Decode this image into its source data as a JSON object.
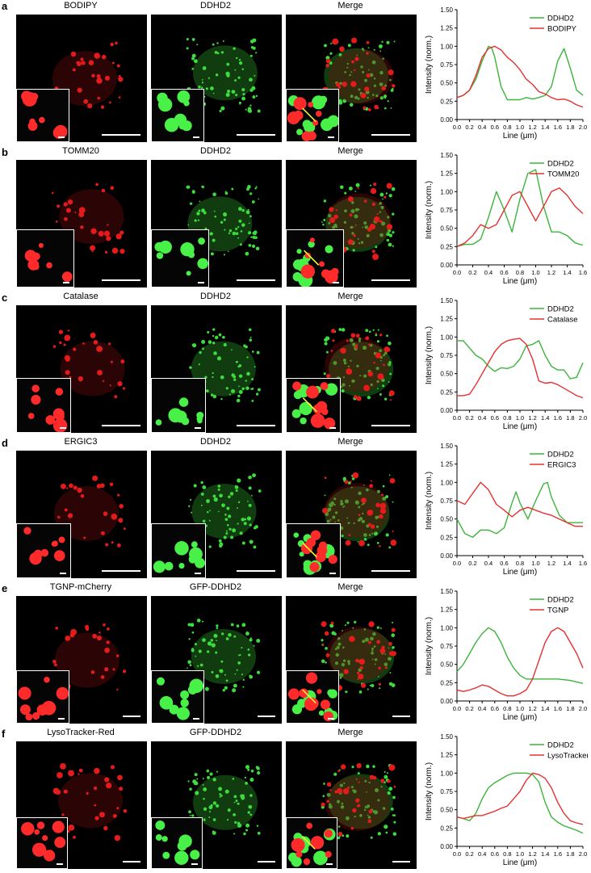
{
  "panels": [
    {
      "label": "a",
      "titles": [
        "BODIPY",
        "DDHD2",
        "Merge"
      ],
      "c1": "red",
      "c2": "green"
    },
    {
      "label": "b",
      "titles": [
        "TOMM20",
        "DDHD2",
        "Merge"
      ],
      "c1": "red",
      "c2": "green"
    },
    {
      "label": "c",
      "titles": [
        "Catalase",
        "DDHD2",
        "Merge"
      ],
      "c1": "red",
      "c2": "green"
    },
    {
      "label": "d",
      "titles": [
        "ERGIC3",
        "DDHD2",
        "Merge"
      ],
      "c1": "red",
      "c2": "green"
    },
    {
      "label": "e",
      "titles": [
        "TGNP-mCherry",
        "GFP-DDHD2",
        "Merge"
      ],
      "c1": "red",
      "c2": "green"
    },
    {
      "label": "f",
      "titles": [
        "LysoTracker-Red",
        "GFP-DDHD2",
        "Merge"
      ],
      "c1": "red",
      "c2": "green"
    }
  ],
  "colors": {
    "green": "#3cb43c",
    "red": "#e53030"
  },
  "chart_data": [
    {
      "type": "line",
      "xlabel": "Line (μm)",
      "ylabel": "Intensity (norm.)",
      "xlim": [
        0,
        2.0
      ],
      "ylim": [
        0,
        1.5
      ],
      "xticks": [
        "0.0",
        "0.2",
        "0.4",
        "0.6",
        "0.8",
        "1.0",
        "1.2",
        "1.4",
        "1.6",
        "1.8",
        "2.0"
      ],
      "yticks": [
        "0.00",
        "0.25",
        "0.50",
        "0.75",
        "1.00",
        "1.25",
        "1.50"
      ],
      "legend": "top-right",
      "series": [
        {
          "name": "DDHD2",
          "color": "green",
          "x": [
            0,
            0.1,
            0.2,
            0.3,
            0.4,
            0.5,
            0.55,
            0.6,
            0.7,
            0.8,
            0.9,
            1.0,
            1.1,
            1.2,
            1.3,
            1.4,
            1.5,
            1.6,
            1.7,
            1.8,
            1.9,
            2.0
          ],
          "y": [
            0.3,
            0.33,
            0.4,
            0.55,
            0.8,
            1.0,
            0.98,
            0.85,
            0.45,
            0.27,
            0.27,
            0.27,
            0.3,
            0.28,
            0.3,
            0.33,
            0.45,
            0.8,
            0.97,
            0.7,
            0.4,
            0.33
          ]
        },
        {
          "name": "BODIPY",
          "color": "red",
          "x": [
            0,
            0.1,
            0.2,
            0.3,
            0.4,
            0.5,
            0.6,
            0.7,
            0.8,
            0.9,
            1.0,
            1.1,
            1.2,
            1.3,
            1.4,
            1.5,
            1.6,
            1.7,
            1.8,
            1.9,
            2.0
          ],
          "y": [
            0.3,
            0.33,
            0.4,
            0.6,
            0.85,
            0.97,
            1.0,
            0.95,
            0.85,
            0.78,
            0.68,
            0.55,
            0.48,
            0.38,
            0.35,
            0.3,
            0.27,
            0.28,
            0.25,
            0.2,
            0.17
          ]
        }
      ]
    },
    {
      "type": "line",
      "xlabel": "Line (μm)",
      "ylabel": "Intensity (norm.)",
      "xlim": [
        0,
        1.6
      ],
      "ylim": [
        0,
        1.5
      ],
      "xticks": [
        "0.0",
        "0.2",
        "0.4",
        "0.6",
        "0.8",
        "1.0",
        "1.2",
        "1.4",
        "1.6"
      ],
      "yticks": [
        "0.00",
        "0.25",
        "0.50",
        "0.75",
        "1.00",
        "1.25",
        "1.50"
      ],
      "legend": "top-right",
      "series": [
        {
          "name": "DDHD2",
          "color": "green",
          "x": [
            0,
            0.1,
            0.2,
            0.3,
            0.4,
            0.5,
            0.6,
            0.7,
            0.8,
            0.9,
            1.0,
            1.1,
            1.2,
            1.3,
            1.4,
            1.5,
            1.6
          ],
          "y": [
            0.25,
            0.28,
            0.28,
            0.35,
            0.65,
            1.0,
            0.75,
            0.45,
            0.9,
            1.25,
            1.3,
            0.8,
            0.45,
            0.45,
            0.4,
            0.3,
            0.27
          ]
        },
        {
          "name": "TOMM20",
          "color": "red",
          "x": [
            0,
            0.1,
            0.2,
            0.3,
            0.4,
            0.5,
            0.6,
            0.7,
            0.8,
            0.9,
            1.0,
            1.1,
            1.2,
            1.3,
            1.4,
            1.5,
            1.6
          ],
          "y": [
            0.25,
            0.3,
            0.4,
            0.55,
            0.5,
            0.55,
            0.75,
            0.95,
            1.0,
            0.8,
            0.6,
            0.8,
            1.0,
            1.05,
            0.95,
            0.8,
            0.7
          ]
        }
      ]
    },
    {
      "type": "line",
      "xlabel": "Line (μm)",
      "ylabel": "Intensity (norm.)",
      "xlim": [
        0,
        2.0
      ],
      "ylim": [
        0,
        1.5
      ],
      "xticks": [
        "0.0",
        "0.2",
        "0.4",
        "0.6",
        "0.8",
        "1.0",
        "1.2",
        "1.4",
        "1.6",
        "1.8",
        "2.0"
      ],
      "yticks": [
        "0.00",
        "0.25",
        "0.50",
        "0.75",
        "1.00",
        "1.25",
        "1.50"
      ],
      "legend": "top-right",
      "series": [
        {
          "name": "DDHD2",
          "color": "green",
          "x": [
            0,
            0.1,
            0.2,
            0.3,
            0.4,
            0.5,
            0.6,
            0.7,
            0.8,
            0.9,
            1.0,
            1.1,
            1.2,
            1.3,
            1.4,
            1.5,
            1.6,
            1.7,
            1.8,
            1.9,
            2.0
          ],
          "y": [
            0.95,
            0.95,
            0.85,
            0.75,
            0.7,
            0.6,
            0.53,
            0.58,
            0.57,
            0.6,
            0.7,
            0.88,
            0.9,
            0.95,
            0.75,
            0.6,
            0.55,
            0.55,
            0.43,
            0.45,
            0.65
          ]
        },
        {
          "name": "Catalase",
          "color": "red",
          "x": [
            0,
            0.1,
            0.2,
            0.3,
            0.4,
            0.5,
            0.6,
            0.7,
            0.8,
            0.9,
            1.0,
            1.1,
            1.2,
            1.3,
            1.4,
            1.5,
            1.6,
            1.7,
            1.8,
            1.9,
            2.0
          ],
          "y": [
            0.2,
            0.2,
            0.22,
            0.35,
            0.5,
            0.65,
            0.8,
            0.9,
            0.95,
            0.97,
            0.98,
            0.9,
            0.7,
            0.4,
            0.37,
            0.38,
            0.35,
            0.3,
            0.25,
            0.2,
            0.17
          ]
        }
      ]
    },
    {
      "type": "line",
      "xlabel": "Line (μm)",
      "ylabel": "Intensity (norm.)",
      "xlim": [
        0,
        1.6
      ],
      "ylim": [
        0,
        1.5
      ],
      "xticks": [
        "0.0",
        "0.2",
        "0.4",
        "0.6",
        "0.8",
        "1.0",
        "1.2",
        "1.4",
        "1.6"
      ],
      "yticks": [
        "0.00",
        "0.25",
        "0.50",
        "0.75",
        "1.00",
        "1.25",
        "1.50"
      ],
      "legend": "top-right",
      "series": [
        {
          "name": "DDHD2",
          "color": "green",
          "x": [
            0,
            0.1,
            0.2,
            0.3,
            0.4,
            0.5,
            0.6,
            0.7,
            0.75,
            0.8,
            0.9,
            1.0,
            1.1,
            1.15,
            1.2,
            1.3,
            1.4,
            1.5,
            1.6
          ],
          "y": [
            0.5,
            0.3,
            0.25,
            0.35,
            0.35,
            0.3,
            0.38,
            0.72,
            0.87,
            0.72,
            0.5,
            0.75,
            0.98,
            1.0,
            0.8,
            0.55,
            0.45,
            0.45,
            0.45
          ]
        },
        {
          "name": "ERGIC3",
          "color": "red",
          "x": [
            0,
            0.1,
            0.2,
            0.3,
            0.4,
            0.5,
            0.6,
            0.7,
            0.8,
            0.9,
            1.0,
            1.1,
            1.2,
            1.3,
            1.4,
            1.5,
            1.6
          ],
          "y": [
            0.75,
            0.7,
            0.85,
            1.0,
            0.9,
            0.7,
            0.62,
            0.53,
            0.62,
            0.66,
            0.62,
            0.58,
            0.55,
            0.5,
            0.45,
            0.4,
            0.4
          ]
        }
      ]
    },
    {
      "type": "line",
      "xlabel": "Line (μm)",
      "ylabel": "Intensity (norm.)",
      "xlim": [
        0,
        2.0
      ],
      "ylim": [
        0,
        1.5
      ],
      "xticks": [
        "0.0",
        "0.2",
        "0.4",
        "0.6",
        "0.8",
        "1.0",
        "1.2",
        "1.4",
        "1.6",
        "1.8",
        "2.0"
      ],
      "yticks": [
        "0.00",
        "0.25",
        "0.50",
        "0.75",
        "1.00",
        "1.25",
        "1.50"
      ],
      "legend": "top-right",
      "series": [
        {
          "name": "DDHD2",
          "color": "green",
          "x": [
            0,
            0.1,
            0.2,
            0.3,
            0.4,
            0.5,
            0.6,
            0.7,
            0.8,
            0.9,
            1.0,
            1.1,
            1.2,
            1.3,
            1.4,
            1.5,
            1.6,
            1.7,
            1.8,
            1.9,
            2.0
          ],
          "y": [
            0.4,
            0.5,
            0.65,
            0.8,
            0.92,
            1.0,
            0.95,
            0.8,
            0.6,
            0.45,
            0.35,
            0.3,
            0.3,
            0.3,
            0.3,
            0.3,
            0.3,
            0.29,
            0.28,
            0.26,
            0.24
          ]
        },
        {
          "name": "TGNP",
          "color": "red",
          "x": [
            0,
            0.1,
            0.2,
            0.3,
            0.4,
            0.5,
            0.6,
            0.7,
            0.8,
            0.9,
            1.0,
            1.1,
            1.2,
            1.3,
            1.4,
            1.5,
            1.6,
            1.7,
            1.8,
            1.9,
            2.0
          ],
          "y": [
            0.15,
            0.13,
            0.15,
            0.18,
            0.22,
            0.2,
            0.15,
            0.1,
            0.07,
            0.07,
            0.1,
            0.15,
            0.3,
            0.55,
            0.8,
            0.95,
            1.0,
            0.95,
            0.8,
            0.65,
            0.45
          ]
        }
      ]
    },
    {
      "type": "line",
      "xlabel": "Line (μm)",
      "ylabel": "Intensity (norm.)",
      "xlim": [
        0,
        2.0
      ],
      "ylim": [
        0,
        1.5
      ],
      "xticks": [
        "0.0",
        "0.2",
        "0.4",
        "0.6",
        "0.8",
        "1.0",
        "1.2",
        "1.4",
        "1.6",
        "1.8",
        "2.0"
      ],
      "yticks": [
        "0.00",
        "0.25",
        "0.50",
        "0.75",
        "1.00",
        "1.25",
        "1.50"
      ],
      "legend": "top-right",
      "series": [
        {
          "name": "DDHD2",
          "color": "green",
          "x": [
            0,
            0.1,
            0.2,
            0.3,
            0.4,
            0.5,
            0.6,
            0.7,
            0.8,
            0.9,
            1.0,
            1.1,
            1.2,
            1.3,
            1.4,
            1.5,
            1.6,
            1.7,
            1.8,
            1.9,
            2.0
          ],
          "y": [
            0.4,
            0.38,
            0.35,
            0.45,
            0.65,
            0.8,
            0.87,
            0.92,
            0.97,
            1.0,
            1.0,
            1.0,
            0.98,
            0.88,
            0.6,
            0.4,
            0.33,
            0.28,
            0.25,
            0.22,
            0.18
          ]
        },
        {
          "name": "LysoTracker",
          "color": "red",
          "x": [
            0,
            0.1,
            0.2,
            0.3,
            0.4,
            0.5,
            0.6,
            0.7,
            0.8,
            0.9,
            1.0,
            1.1,
            1.2,
            1.3,
            1.4,
            1.5,
            1.6,
            1.7,
            1.8,
            1.9,
            2.0
          ],
          "y": [
            0.4,
            0.38,
            0.4,
            0.42,
            0.42,
            0.45,
            0.48,
            0.52,
            0.55,
            0.65,
            0.75,
            0.9,
            1.0,
            0.98,
            0.93,
            0.8,
            0.6,
            0.45,
            0.35,
            0.32,
            0.3
          ]
        }
      ]
    }
  ]
}
